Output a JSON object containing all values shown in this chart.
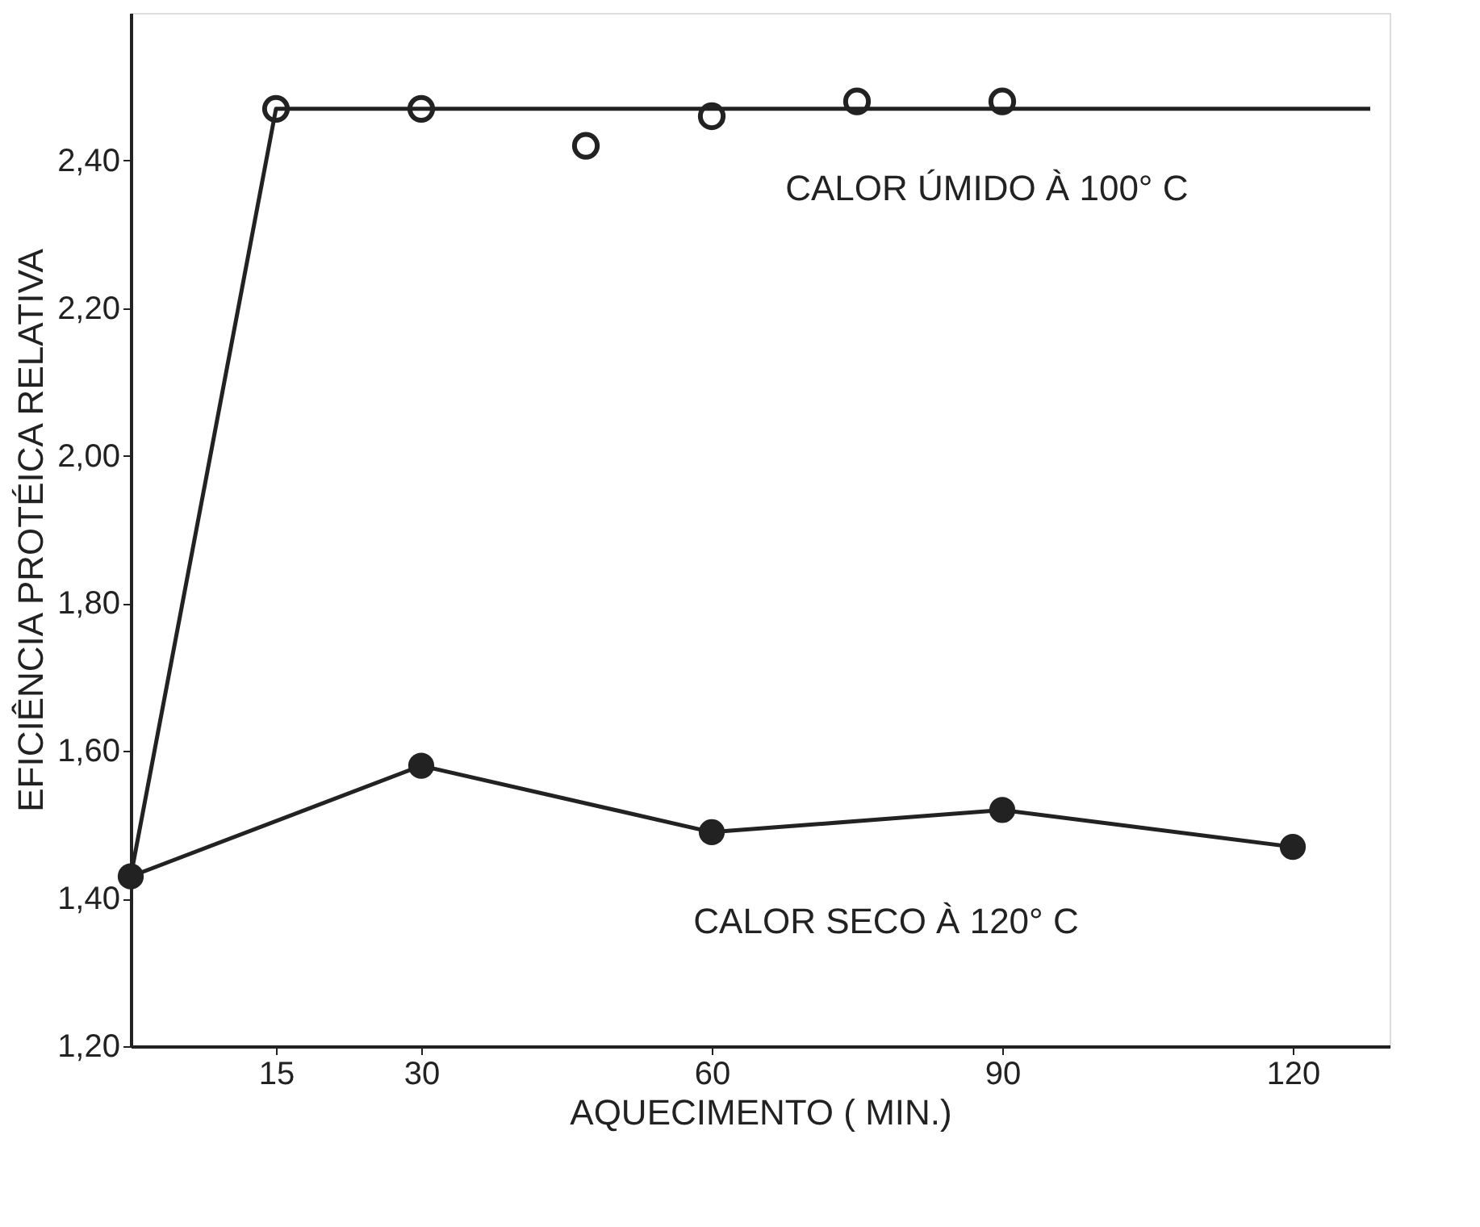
{
  "chart_data": {
    "type": "line",
    "xlabel": "AQUECIMENTO ( MIN.)",
    "ylabel": "EFICIÊNCIA PROTÉICA RELATIVA",
    "xlim": [
      0,
      130
    ],
    "xticks": [
      15,
      30,
      60,
      90,
      120
    ],
    "ylim": [
      1.2,
      2.6
    ],
    "yticks": [
      {
        "value": 1.2,
        "label": "1,20"
      },
      {
        "value": 1.4,
        "label": "1,40"
      },
      {
        "value": 1.6,
        "label": "1,60"
      },
      {
        "value": 1.8,
        "label": "1,80"
      },
      {
        "value": 2.0,
        "label": "2,00"
      },
      {
        "value": 2.2,
        "label": "2,20"
      },
      {
        "value": 2.4,
        "label": "2,40"
      }
    ],
    "grid": false,
    "line_style": "solid",
    "series": [
      {
        "color": "#222222",
        "marker": "none",
        "x": [
          0,
          15,
          128
        ],
        "values": [
          1.43,
          2.47,
          2.47
        ]
      },
      {
        "type": "scatter",
        "color": "#222222",
        "marker": "circle",
        "x": [
          15,
          30,
          47,
          60,
          75,
          90
        ],
        "values": [
          2.47,
          2.47,
          2.42,
          2.46,
          2.48,
          2.48
        ]
      },
      {
        "color": "#222222",
        "marker": "circle",
        "x": [
          0,
          30,
          60,
          90,
          120
        ],
        "values": [
          1.43,
          1.58,
          1.49,
          1.52,
          1.47
        ]
      }
    ],
    "annotations": [
      "CALOR ÚMIDO À 100° C",
      "CALOR SECO À 120° C"
    ]
  }
}
